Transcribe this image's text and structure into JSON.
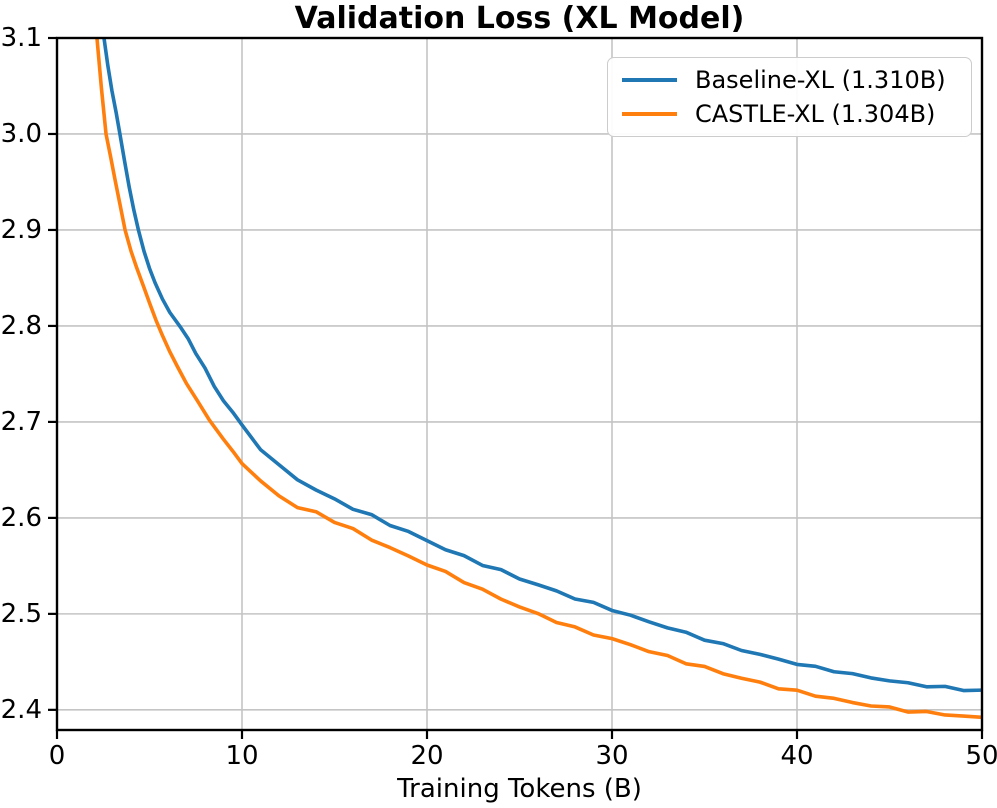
{
  "chart_data": {
    "type": "line",
    "title": "Validation Loss (XL Model)",
    "xlabel": "Training Tokens (B)",
    "ylabel": "",
    "xlim": [
      0,
      50
    ],
    "ylim": [
      2.379,
      3.1
    ],
    "xticks": [
      0,
      10,
      20,
      30,
      40,
      50
    ],
    "yticks": [
      2.4,
      2.5,
      2.6,
      2.7,
      2.8,
      2.9,
      3.0,
      3.1
    ],
    "grid": true,
    "grid_color": "#c4c4c4",
    "frame_color": "#000000",
    "legend": {
      "position": "upper right",
      "entries": [
        "Baseline-XL (1.310B)",
        "CASTLE-XL (1.304B)"
      ]
    },
    "series": [
      {
        "name": "Baseline-XL (1.310B)",
        "slug": "baseline-xl",
        "color": "#1f77b4",
        "points": [
          [
            2.3,
            3.25
          ],
          [
            2.54,
            3.1
          ],
          [
            2.75,
            3.071
          ],
          [
            2.97,
            3.045
          ],
          [
            3.2,
            3.022
          ],
          [
            3.4,
            3.0
          ],
          [
            3.65,
            2.972
          ],
          [
            3.9,
            2.945
          ],
          [
            4.15,
            2.921
          ],
          [
            4.4,
            2.9
          ],
          [
            4.7,
            2.878
          ],
          [
            5.0,
            2.86
          ],
          [
            5.3,
            2.845
          ],
          [
            5.7,
            2.828
          ],
          [
            6.1,
            2.814
          ],
          [
            6.7,
            2.798
          ],
          [
            7.1,
            2.785
          ],
          [
            7.5,
            2.77
          ],
          [
            8.0,
            2.756
          ],
          [
            8.5,
            2.738
          ],
          [
            9.0,
            2.723
          ],
          [
            9.5,
            2.709
          ],
          [
            10,
            2.696
          ],
          [
            11,
            2.673
          ],
          [
            12,
            2.655
          ],
          [
            13,
            2.641
          ],
          [
            14,
            2.63
          ],
          [
            15,
            2.62
          ],
          [
            16,
            2.611
          ],
          [
            17,
            2.603
          ],
          [
            18,
            2.594
          ],
          [
            19,
            2.586
          ],
          [
            20,
            2.577
          ],
          [
            21,
            2.568
          ],
          [
            22,
            2.56
          ],
          [
            23,
            2.552
          ],
          [
            24,
            2.545
          ],
          [
            25,
            2.537
          ],
          [
            26,
            2.53
          ],
          [
            27,
            2.523
          ],
          [
            28,
            2.516
          ],
          [
            29,
            2.51
          ],
          [
            30,
            2.504
          ],
          [
            31,
            2.497
          ],
          [
            32,
            2.491
          ],
          [
            33,
            2.485
          ],
          [
            34,
            2.479
          ],
          [
            35,
            2.473
          ],
          [
            36,
            2.467
          ],
          [
            37,
            2.462
          ],
          [
            38,
            2.457
          ],
          [
            39,
            2.452
          ],
          [
            40,
            2.448
          ],
          [
            41,
            2.444
          ],
          [
            42,
            2.441
          ],
          [
            43,
            2.437
          ],
          [
            44,
            2.434
          ],
          [
            45,
            2.431
          ],
          [
            46,
            2.428
          ],
          [
            47,
            2.426
          ],
          [
            48,
            2.424
          ],
          [
            49,
            2.422
          ],
          [
            50,
            2.421
          ]
        ]
      },
      {
        "name": "CASTLE-XL (1.304B)",
        "slug": "castle-xl",
        "color": "#ff7f0e",
        "points": [
          [
            1.95,
            3.25
          ],
          [
            2.16,
            3.1
          ],
          [
            2.4,
            3.048
          ],
          [
            2.65,
            3.0
          ],
          [
            2.9,
            2.976
          ],
          [
            3.15,
            2.951
          ],
          [
            3.4,
            2.927
          ],
          [
            3.68,
            2.9
          ],
          [
            4.0,
            2.878
          ],
          [
            4.3,
            2.861
          ],
          [
            4.7,
            2.84
          ],
          [
            5.0,
            2.824
          ],
          [
            5.35,
            2.806
          ],
          [
            5.7,
            2.79
          ],
          [
            6.1,
            2.773
          ],
          [
            6.5,
            2.758
          ],
          [
            7.0,
            2.74
          ],
          [
            7.6,
            2.722
          ],
          [
            8.24,
            2.703
          ],
          [
            9.0,
            2.681
          ],
          [
            9.5,
            2.669
          ],
          [
            10,
            2.658
          ],
          [
            11,
            2.638
          ],
          [
            12,
            2.623
          ],
          [
            13,
            2.611
          ],
          [
            14,
            2.605
          ],
          [
            15,
            2.596
          ],
          [
            16,
            2.587
          ],
          [
            17,
            2.577
          ],
          [
            18,
            2.568
          ],
          [
            19,
            2.559
          ],
          [
            20,
            2.551
          ],
          [
            21,
            2.542
          ],
          [
            22,
            2.533
          ],
          [
            23,
            2.524
          ],
          [
            24,
            2.515
          ],
          [
            25,
            2.507
          ],
          [
            26,
            2.499
          ],
          [
            27,
            2.492
          ],
          [
            28,
            2.485
          ],
          [
            29,
            2.479
          ],
          [
            30,
            2.474
          ],
          [
            31,
            2.468
          ],
          [
            32,
            2.462
          ],
          [
            33,
            2.456
          ],
          [
            34,
            2.45
          ],
          [
            35,
            2.445
          ],
          [
            36,
            2.439
          ],
          [
            37,
            2.434
          ],
          [
            38,
            2.429
          ],
          [
            39,
            2.424
          ],
          [
            40,
            2.42
          ],
          [
            41,
            2.416
          ],
          [
            42,
            2.412
          ],
          [
            43,
            2.408
          ],
          [
            44,
            2.405
          ],
          [
            45,
            2.402
          ],
          [
            46,
            2.399
          ],
          [
            47,
            2.397
          ],
          [
            48,
            2.395
          ],
          [
            49,
            2.393
          ],
          [
            50,
            2.391
          ]
        ]
      }
    ]
  }
}
